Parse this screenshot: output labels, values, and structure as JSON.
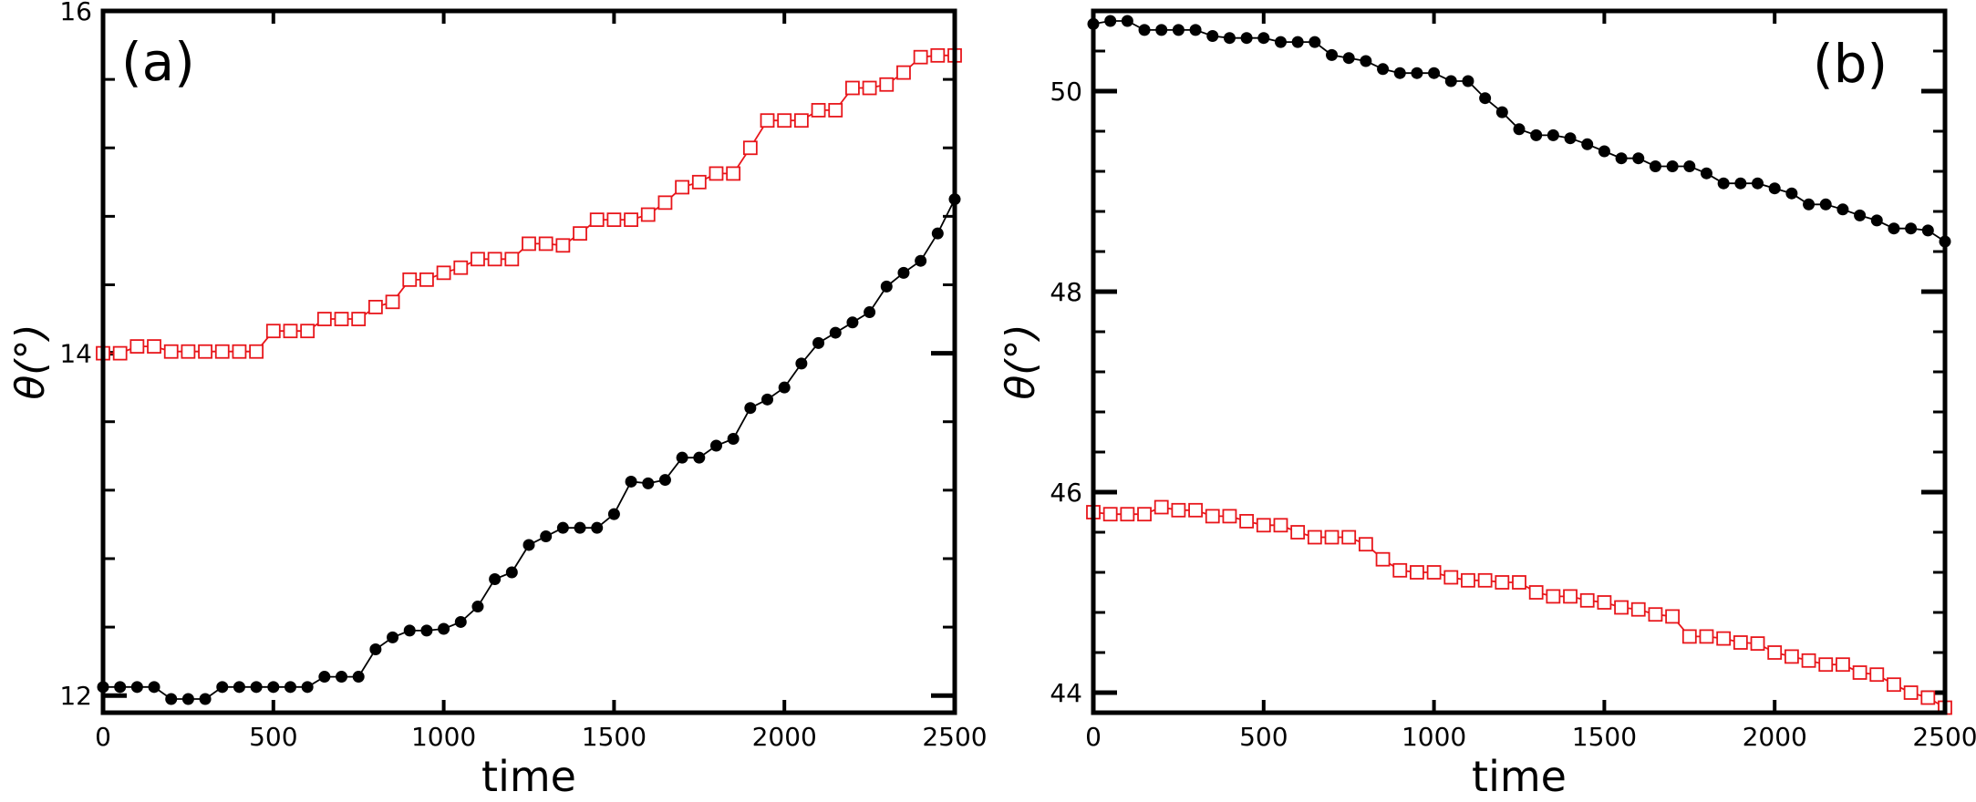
{
  "colors": {
    "series_black": "#000000",
    "series_red": "#e8161b",
    "axes": "#000000",
    "background": "#ffffff"
  },
  "chart_data": [
    {
      "type": "line",
      "panel_label": "(a)",
      "title": "",
      "xlabel": "time",
      "ylabel": "θ(°)",
      "xlim": [
        0,
        2500
      ],
      "ylim": [
        11.9,
        16.0
      ],
      "xticks": [
        0,
        500,
        1000,
        1500,
        2000,
        2500
      ],
      "xtick_labels": [
        "0",
        "500",
        "1000",
        "1500",
        "2000",
        "2500"
      ],
      "yticks": [
        12,
        14,
        16
      ],
      "ytick_labels": [
        "12",
        "14",
        "16"
      ],
      "yminor_ticks": [
        12.4,
        12.8,
        13.2,
        13.6,
        14.4,
        14.8,
        15.2,
        15.6
      ],
      "grid": false,
      "x": [
        0,
        50,
        100,
        150,
        200,
        250,
        300,
        350,
        400,
        450,
        500,
        550,
        600,
        650,
        700,
        750,
        800,
        850,
        900,
        950,
        1000,
        1050,
        1100,
        1150,
        1200,
        1250,
        1300,
        1350,
        1400,
        1450,
        1500,
        1550,
        1600,
        1650,
        1700,
        1750,
        1800,
        1850,
        1900,
        1950,
        2000,
        2050,
        2100,
        2150,
        2200,
        2250,
        2300,
        2350,
        2400,
        2450,
        2500
      ],
      "series": [
        {
          "name": "black filled circles",
          "color": "#000000",
          "marker": "filled-circle",
          "values": [
            12.05,
            12.05,
            12.05,
            12.05,
            11.98,
            11.98,
            11.98,
            12.05,
            12.05,
            12.05,
            12.05,
            12.05,
            12.05,
            12.11,
            12.11,
            12.11,
            12.27,
            12.34,
            12.38,
            12.38,
            12.39,
            12.43,
            12.52,
            12.68,
            12.72,
            12.88,
            12.93,
            12.98,
            12.98,
            12.98,
            13.06,
            13.25,
            13.24,
            13.26,
            13.39,
            13.39,
            13.46,
            13.5,
            13.68,
            13.73,
            13.8,
            13.94,
            14.06,
            14.12,
            14.18,
            14.24,
            14.39,
            14.47,
            14.54,
            14.7,
            14.9
          ]
        },
        {
          "name": "red open squares",
          "color": "#e8161b",
          "marker": "open-square",
          "values": [
            14.0,
            14.0,
            14.04,
            14.04,
            14.01,
            14.01,
            14.01,
            14.01,
            14.01,
            14.01,
            14.13,
            14.13,
            14.13,
            14.2,
            14.2,
            14.2,
            14.27,
            14.3,
            14.43,
            14.43,
            14.47,
            14.5,
            14.55,
            14.55,
            14.55,
            14.64,
            14.64,
            14.63,
            14.7,
            14.78,
            14.78,
            14.78,
            14.81,
            14.88,
            14.97,
            15.0,
            15.05,
            15.05,
            15.2,
            15.36,
            15.36,
            15.36,
            15.42,
            15.42,
            15.55,
            15.55,
            15.57,
            15.64,
            15.73,
            15.74,
            15.74
          ]
        }
      ]
    },
    {
      "type": "line",
      "panel_label": "(b)",
      "title": "",
      "xlabel": "time",
      "ylabel": "θ(°)",
      "xlim": [
        0,
        2500
      ],
      "ylim": [
        43.8,
        50.8
      ],
      "xticks": [
        0,
        500,
        1000,
        1500,
        2000,
        2500
      ],
      "xtick_labels": [
        "0",
        "500",
        "1000",
        "1500",
        "2000",
        "2500"
      ],
      "yticks": [
        44,
        46,
        48,
        50
      ],
      "ytick_labels": [
        "44",
        "46",
        "48",
        "50"
      ],
      "yminor_ticks": [
        44.4,
        44.8,
        45.2,
        45.6,
        46.4,
        46.8,
        47.2,
        47.6,
        48.4,
        48.8,
        49.2,
        49.6,
        50.4
      ],
      "grid": false,
      "x": [
        0,
        50,
        100,
        150,
        200,
        250,
        300,
        350,
        400,
        450,
        500,
        550,
        600,
        650,
        700,
        750,
        800,
        850,
        900,
        950,
        1000,
        1050,
        1100,
        1150,
        1200,
        1250,
        1300,
        1350,
        1400,
        1450,
        1500,
        1550,
        1600,
        1650,
        1700,
        1750,
        1800,
        1850,
        1900,
        1950,
        2000,
        2050,
        2100,
        2150,
        2200,
        2250,
        2300,
        2350,
        2400,
        2450,
        2500
      ],
      "series": [
        {
          "name": "black filled circles",
          "color": "#000000",
          "marker": "filled-circle",
          "values": [
            50.67,
            50.7,
            50.7,
            50.61,
            50.61,
            50.61,
            50.61,
            50.55,
            50.53,
            50.53,
            50.53,
            50.49,
            50.49,
            50.49,
            50.36,
            50.33,
            50.3,
            50.22,
            50.18,
            50.18,
            50.18,
            50.1,
            50.1,
            49.93,
            49.79,
            49.62,
            49.56,
            49.56,
            49.53,
            49.47,
            49.4,
            49.33,
            49.33,
            49.25,
            49.25,
            49.25,
            49.18,
            49.08,
            49.08,
            49.08,
            49.03,
            48.98,
            48.87,
            48.87,
            48.82,
            48.76,
            48.71,
            48.63,
            48.63,
            48.61,
            48.5
          ]
        },
        {
          "name": "red open squares",
          "color": "#e8161b",
          "marker": "open-square",
          "values": [
            45.8,
            45.78,
            45.78,
            45.78,
            45.85,
            45.82,
            45.82,
            45.76,
            45.76,
            45.71,
            45.67,
            45.67,
            45.6,
            45.55,
            45.55,
            45.55,
            45.48,
            45.33,
            45.22,
            45.2,
            45.2,
            45.15,
            45.12,
            45.12,
            45.1,
            45.1,
            45.0,
            44.96,
            44.96,
            44.92,
            44.9,
            44.85,
            44.83,
            44.78,
            44.76,
            44.56,
            44.56,
            44.54,
            44.5,
            44.49,
            44.4,
            44.36,
            44.32,
            44.28,
            44.28,
            44.2,
            44.18,
            44.08,
            44.0,
            43.95,
            43.85
          ]
        }
      ]
    }
  ]
}
